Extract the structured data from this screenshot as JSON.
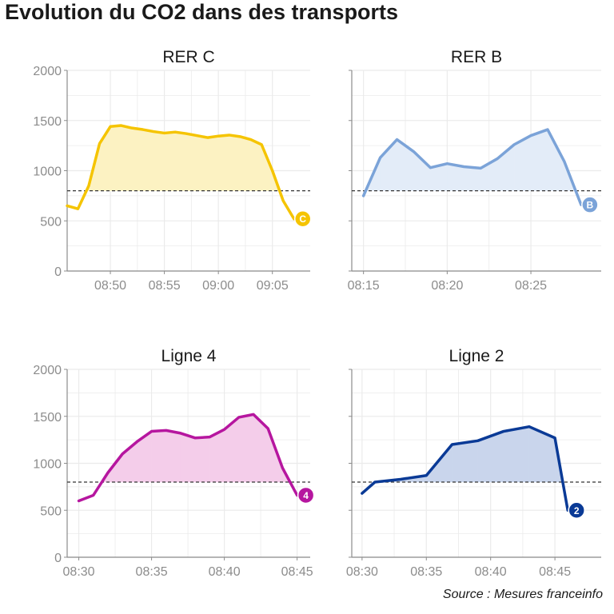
{
  "title": "Evolution du CO2 dans des transports",
  "source": "Source : Mesures franceinfo",
  "colors": {
    "grid": "#ebebeb",
    "axis": "#8c8c8c",
    "tick_text": "#8c8c8c",
    "threshold": "#333333"
  },
  "chart_data": [
    {
      "type": "area",
      "title": "RER C",
      "badge": "C",
      "color": "#f5c400",
      "fill": "#fcf2c2",
      "threshold": 800,
      "ylim": [
        0,
        2000
      ],
      "y_ticks": [
        0,
        500,
        1000,
        1500,
        2000
      ],
      "x_ticks": [
        "08:50",
        "08:55",
        "09:00",
        "09:05"
      ],
      "x": [
        "08:46",
        "08:47",
        "08:48",
        "08:49",
        "08:50",
        "08:51",
        "08:52",
        "08:53",
        "08:54",
        "08:55",
        "08:56",
        "08:57",
        "08:58",
        "08:59",
        "09:00",
        "09:01",
        "09:02",
        "09:03",
        "09:04",
        "09:05",
        "09:06",
        "09:07"
      ],
      "values": [
        650,
        620,
        850,
        1270,
        1440,
        1450,
        1425,
        1410,
        1390,
        1375,
        1385,
        1370,
        1350,
        1330,
        1345,
        1355,
        1340,
        1310,
        1260,
        1000,
        700,
        520
      ]
    },
    {
      "type": "area",
      "title": "RER B",
      "badge": "B",
      "color": "#7ba3d8",
      "fill": "#e3ecf8",
      "threshold": 800,
      "ylim": [
        0,
        2000
      ],
      "y_ticks": [
        0,
        500,
        1000,
        1500,
        2000
      ],
      "x_ticks": [
        "08:15",
        "08:20",
        "08:25"
      ],
      "x": [
        "08:15",
        "08:16",
        "08:17",
        "08:18",
        "08:19",
        "08:20",
        "08:21",
        "08:22",
        "08:23",
        "08:24",
        "08:25",
        "08:26",
        "08:27",
        "08:28"
      ],
      "values": [
        750,
        1130,
        1310,
        1190,
        1030,
        1070,
        1040,
        1025,
        1120,
        1260,
        1350,
        1410,
        1090,
        660
      ]
    },
    {
      "type": "area",
      "title": "Ligne 4",
      "badge": "4",
      "color": "#b6169f",
      "fill": "#f4cdea",
      "threshold": 800,
      "ylim": [
        0,
        2000
      ],
      "y_ticks": [
        0,
        500,
        1000,
        1500,
        2000
      ],
      "x_ticks": [
        "08:30",
        "08:35",
        "08:40",
        "08:45"
      ],
      "x": [
        "08:30",
        "08:31",
        "08:32",
        "08:33",
        "08:34",
        "08:35",
        "08:36",
        "08:37",
        "08:38",
        "08:39",
        "08:40",
        "08:41",
        "08:42",
        "08:43",
        "08:44",
        "08:45"
      ],
      "values": [
        600,
        660,
        900,
        1100,
        1230,
        1340,
        1350,
        1320,
        1270,
        1280,
        1360,
        1490,
        1520,
        1370,
        950,
        660
      ]
    },
    {
      "type": "area",
      "title": "Ligne 2",
      "badge": "2",
      "color": "#0a3a96",
      "fill": "#c9d5ec",
      "threshold": 800,
      "ylim": [
        0,
        2000
      ],
      "y_ticks": [
        0,
        500,
        1000,
        1500,
        2000
      ],
      "x_ticks": [
        "08:30",
        "08:35",
        "08:40",
        "08:45"
      ],
      "x": [
        "08:30",
        "08:31",
        "08:33",
        "08:35",
        "08:37",
        "08:39",
        "08:41",
        "08:43",
        "08:45",
        "08:46"
      ],
      "values": [
        680,
        800,
        830,
        870,
        1200,
        1240,
        1340,
        1390,
        1270,
        500
      ]
    }
  ]
}
